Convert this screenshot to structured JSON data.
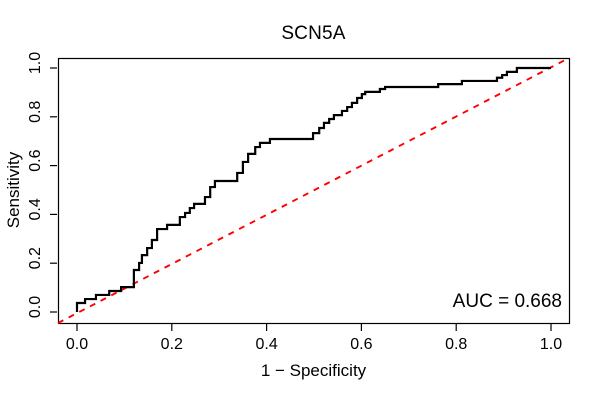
{
  "chart_data": {
    "type": "line",
    "subtype": "roc-step-curve",
    "title": "SCN5A",
    "xlabel": "1 − Specificity",
    "ylabel": "Sensitivity",
    "xlim": [
      0,
      1
    ],
    "ylim": [
      0,
      1
    ],
    "xticks": [
      "0.0",
      "0.2",
      "0.4",
      "0.6",
      "0.8",
      "1.0"
    ],
    "yticks": [
      "0.0",
      "0.2",
      "0.4",
      "0.6",
      "0.8",
      "1.0"
    ],
    "grid": false,
    "legend": "none",
    "box": true,
    "background": "#ffffff",
    "annotation": {
      "text": "AUC = 0.668",
      "value": 0.668,
      "position": "bottom-right"
    },
    "series": [
      {
        "name": "ROC curve",
        "type": "step",
        "color": "#000000",
        "linestyle": "solid",
        "linewidth": 2,
        "start": [
          0.0,
          0.0
        ],
        "steps": [
          [
            0.0,
            0.037
          ],
          [
            0.017,
            0.053
          ],
          [
            0.04,
            0.07
          ],
          [
            0.068,
            0.086
          ],
          [
            0.093,
            0.102
          ],
          [
            0.12,
            0.172
          ],
          [
            0.131,
            0.201
          ],
          [
            0.137,
            0.233
          ],
          [
            0.148,
            0.262
          ],
          [
            0.158,
            0.295
          ],
          [
            0.169,
            0.34
          ],
          [
            0.19,
            0.357
          ],
          [
            0.217,
            0.389
          ],
          [
            0.228,
            0.406
          ],
          [
            0.238,
            0.426
          ],
          [
            0.247,
            0.443
          ],
          [
            0.27,
            0.471
          ],
          [
            0.281,
            0.512
          ],
          [
            0.291,
            0.537
          ],
          [
            0.338,
            0.57
          ],
          [
            0.35,
            0.615
          ],
          [
            0.361,
            0.648
          ],
          [
            0.376,
            0.676
          ],
          [
            0.386,
            0.693
          ],
          [
            0.407,
            0.709
          ],
          [
            0.498,
            0.733
          ],
          [
            0.511,
            0.754
          ],
          [
            0.521,
            0.775
          ],
          [
            0.532,
            0.791
          ],
          [
            0.542,
            0.807
          ],
          [
            0.559,
            0.824
          ],
          [
            0.57,
            0.84
          ],
          [
            0.58,
            0.857
          ],
          [
            0.591,
            0.877
          ],
          [
            0.601,
            0.893
          ],
          [
            0.608,
            0.902
          ],
          [
            0.639,
            0.914
          ],
          [
            0.65,
            0.922
          ],
          [
            0.762,
            0.934
          ],
          [
            0.812,
            0.947
          ],
          [
            0.886,
            0.96
          ],
          [
            0.897,
            0.971
          ],
          [
            0.907,
            0.984
          ],
          [
            0.928,
            1.0
          ]
        ],
        "end": [
          1.0,
          1.0
        ]
      },
      {
        "name": "Chance diagonal",
        "type": "line",
        "color": "#FF0000",
        "linestyle": "dashed",
        "linewidth": 2,
        "points": [
          [
            0,
            0
          ],
          [
            1,
            1
          ]
        ]
      }
    ]
  }
}
